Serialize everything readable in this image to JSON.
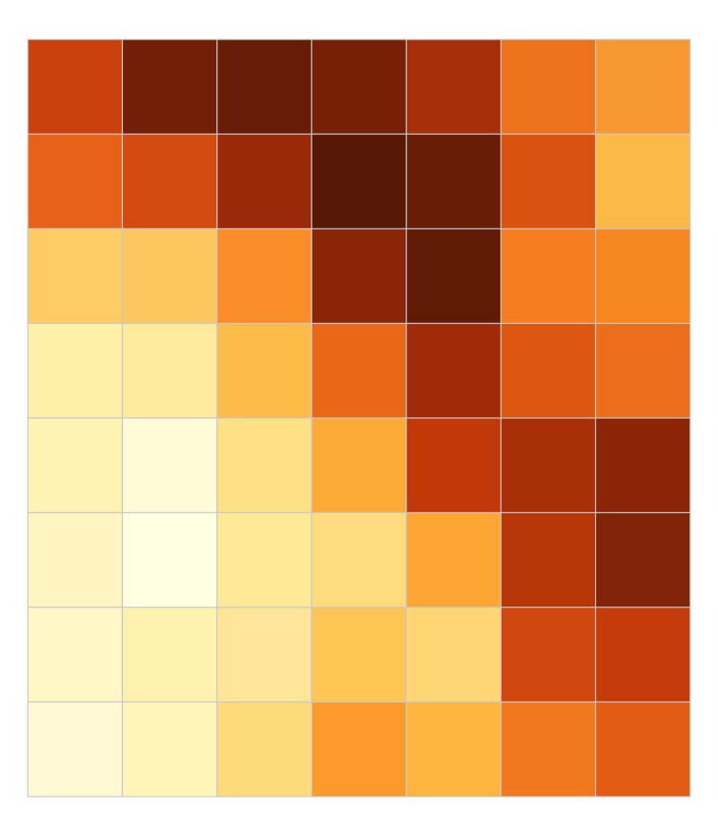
{
  "chart_data": {
    "type": "heatmap",
    "rows": 8,
    "cols": 7,
    "colormap": "YlOrBr",
    "grid": true,
    "grid_color": "#c8c8c8",
    "title": "",
    "xlabel": "",
    "ylabel": "",
    "axes_visible": false,
    "colorbar": false,
    "values": [
      [
        0.72,
        0.88,
        0.92,
        0.89,
        0.8,
        0.62,
        0.52
      ],
      [
        0.65,
        0.71,
        0.84,
        0.98,
        0.93,
        0.68,
        0.4
      ],
      [
        0.32,
        0.34,
        0.55,
        0.86,
        0.95,
        0.56,
        0.57
      ],
      [
        0.17,
        0.19,
        0.4,
        0.65,
        0.8,
        0.68,
        0.63
      ],
      [
        0.15,
        0.07,
        0.25,
        0.47,
        0.76,
        0.8,
        0.86
      ],
      [
        0.13,
        0.02,
        0.2,
        0.26,
        0.47,
        0.77,
        0.88
      ],
      [
        0.1,
        0.18,
        0.23,
        0.36,
        0.29,
        0.72,
        0.75
      ],
      [
        0.07,
        0.15,
        0.28,
        0.52,
        0.44,
        0.6,
        0.66
      ]
    ],
    "colors": [
      [
        "#c9420e",
        "#731e07",
        "#661c06",
        "#781f07",
        "#a62e08",
        "#ee711b",
        "#f89830"
      ],
      [
        "#e86118",
        "#d24b0f",
        "#992908",
        "#551906",
        "#681d07",
        "#d9520f",
        "#fdb945"
      ],
      [
        "#fdcc64",
        "#fdc75f",
        "#fa8d27",
        "#8a2508",
        "#5f1b06",
        "#f67d20",
        "#f68720"
      ],
      [
        "#fef0a7",
        "#fee99c",
        "#fdbb48",
        "#e96818",
        "#9f2b08",
        "#de5710",
        "#ed6e1a"
      ],
      [
        "#fff3b4",
        "#fffbd7",
        "#fee185",
        "#fdaa36",
        "#c13908",
        "#a82f08",
        "#8c2508"
      ],
      [
        "#fff5c2",
        "#ffffe1",
        "#fee996",
        "#fedc7e",
        "#fca633",
        "#b73607",
        "#812308"
      ],
      [
        "#fff7c6",
        "#fff2b1",
        "#fee597",
        "#fec454",
        "#fed673",
        "#cf470e",
        "#c53c0a"
      ],
      [
        "#fff9d4",
        "#fff5b9",
        "#fedb7a",
        "#fb9b2c",
        "#fdb63d",
        "#f27820",
        "#e25c14"
      ]
    ]
  }
}
